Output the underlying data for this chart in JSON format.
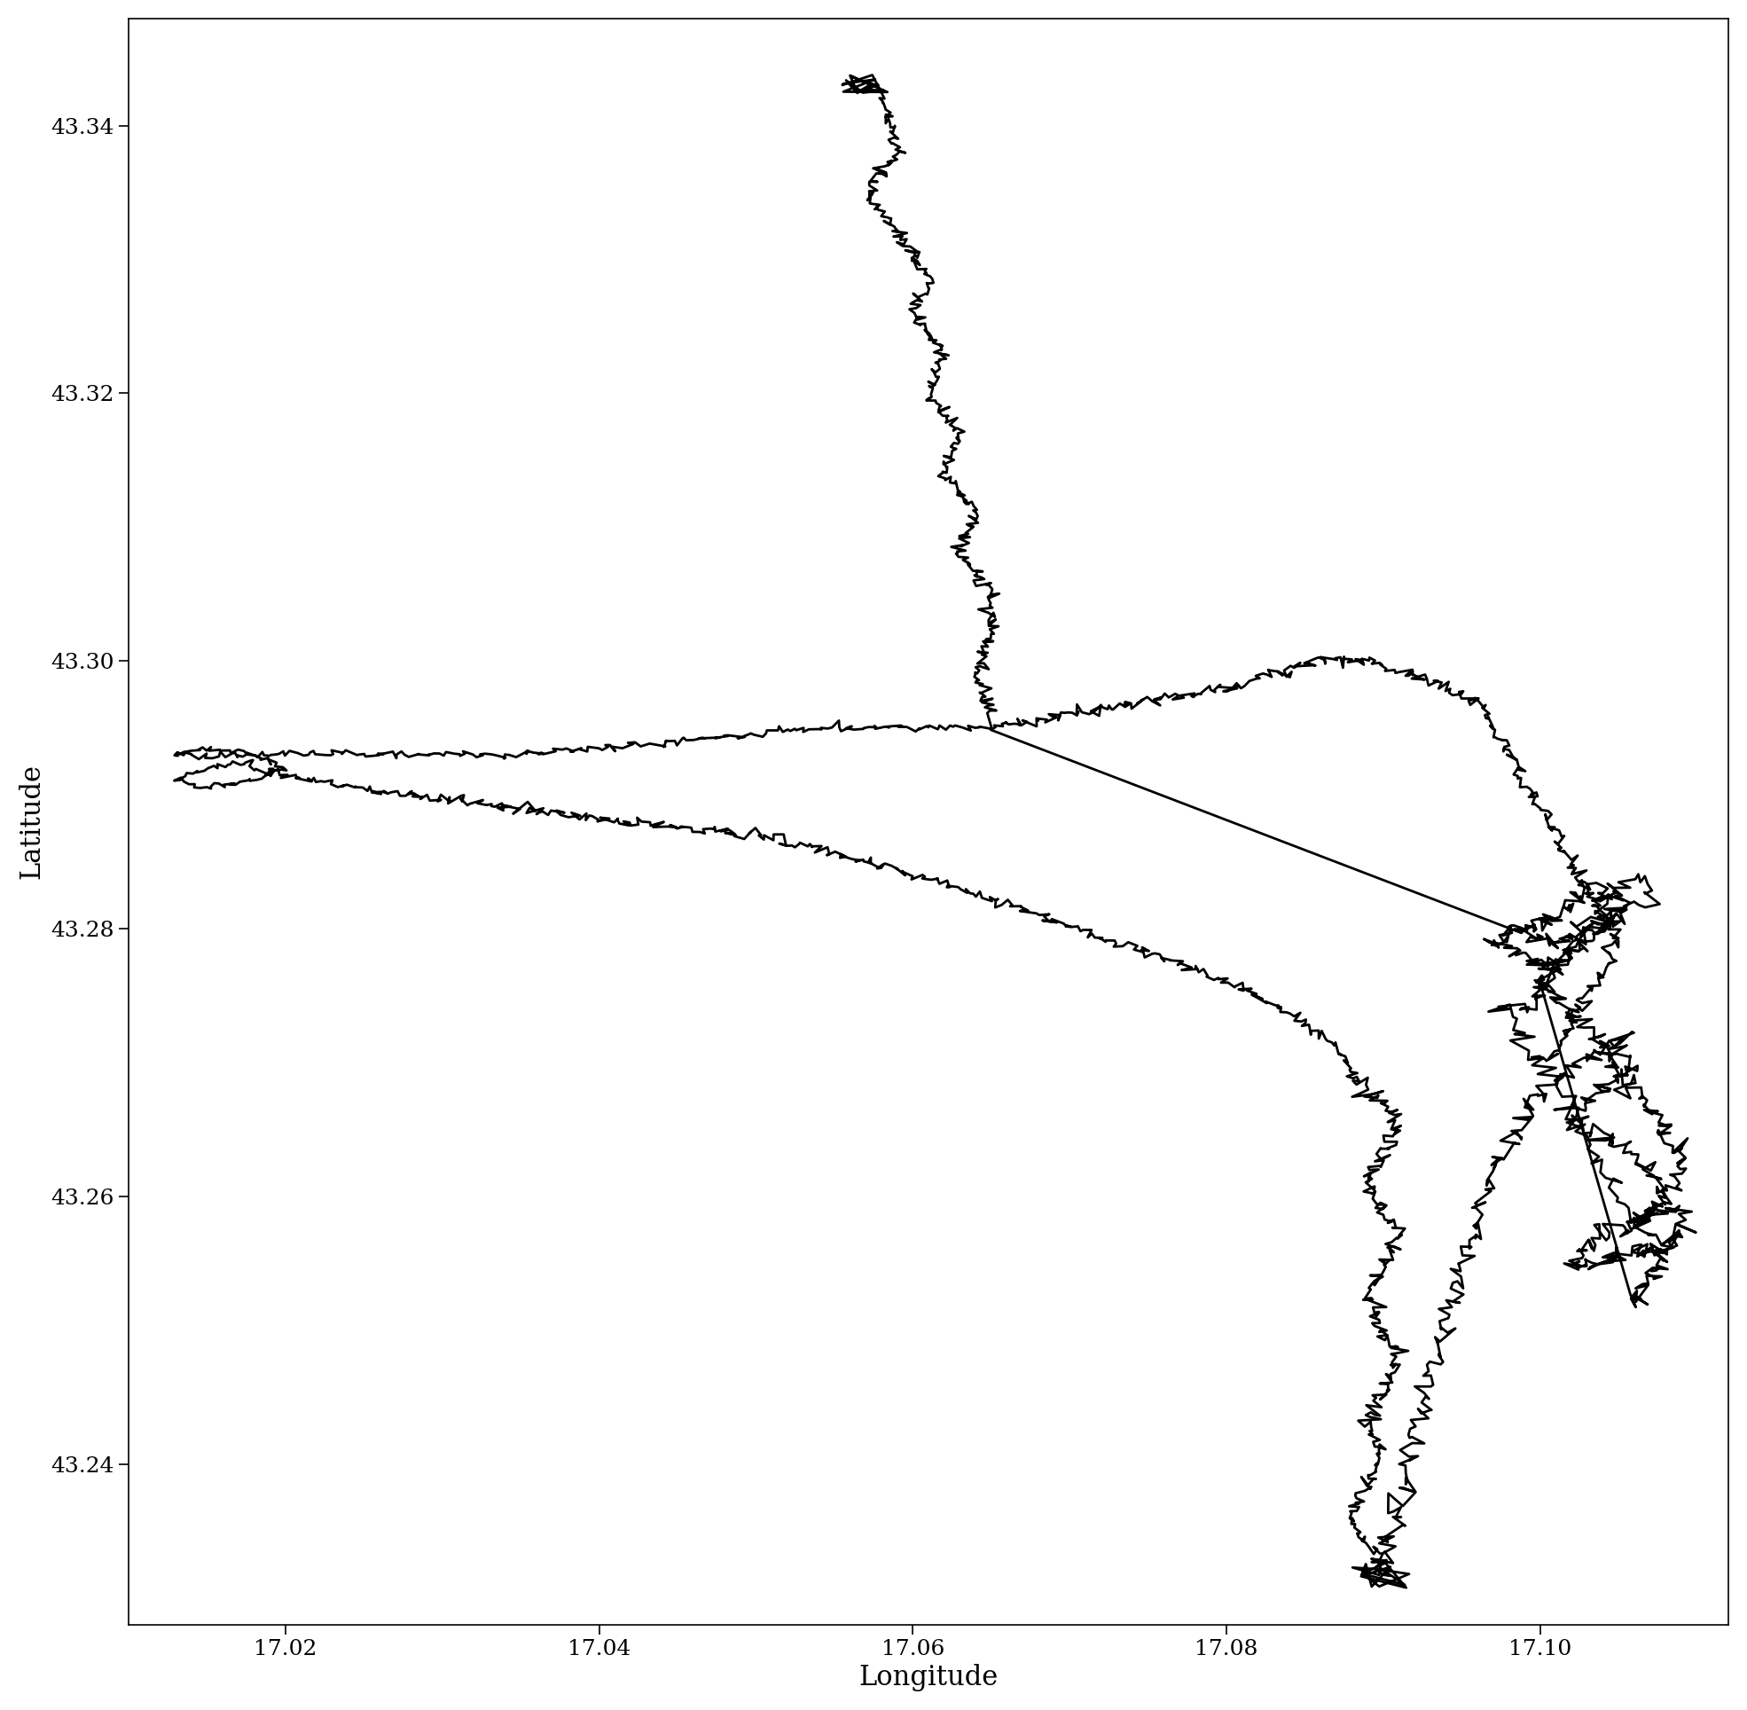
{
  "xlabel": "Longitude",
  "ylabel": "Latitude",
  "xlim": [
    17.01,
    17.112
  ],
  "ylim": [
    43.228,
    43.348
  ],
  "xticks": [
    17.02,
    17.04,
    17.06,
    17.08,
    17.1
  ],
  "yticks": [
    43.24,
    43.26,
    43.28,
    43.3,
    43.32,
    43.34
  ],
  "line_color": "#000000",
  "line_width": 2.0,
  "background_color": "#ffffff",
  "font_family": "serif",
  "tick_labelsize": 18,
  "axis_labelsize": 22
}
